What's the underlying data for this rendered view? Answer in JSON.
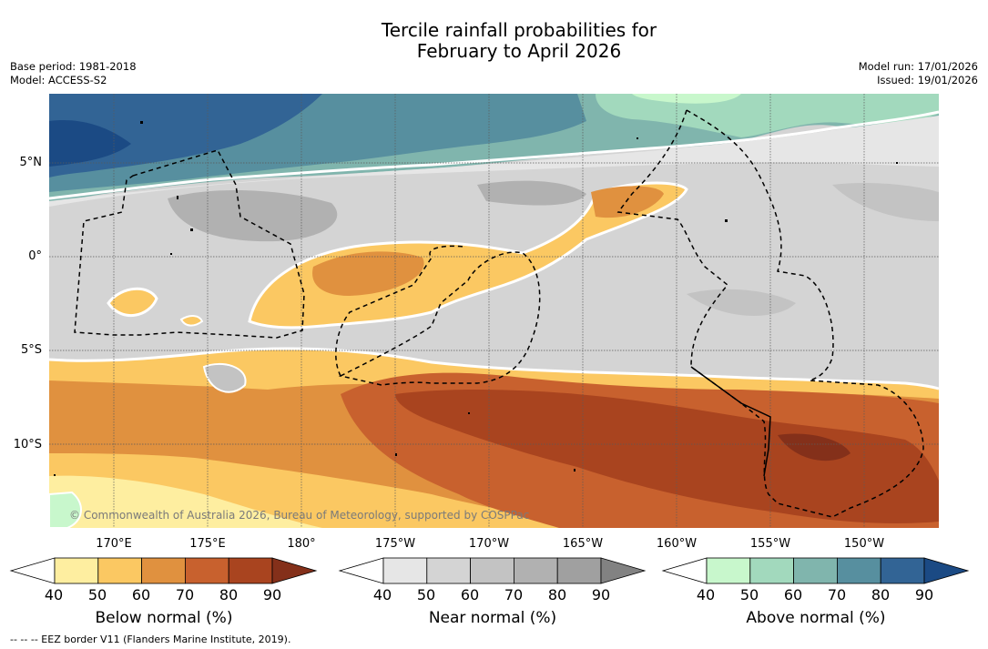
{
  "title": {
    "line1": "Tercile rainfall probabilities for",
    "line2": "February to April 2026"
  },
  "meta_left": {
    "base_period": "Base period: 1981-2018",
    "model": "Model: ACCESS-S2"
  },
  "meta_right": {
    "model_run": "Model run: 17/01/2026",
    "issued": "Issued: 19/01/2026"
  },
  "map": {
    "latitude_labels": [
      "5°N",
      "0°",
      "5°S",
      "10°S"
    ],
    "longitude_labels": [
      "170°E",
      "175°E",
      "180°",
      "175°W",
      "170°W",
      "165°W",
      "160°W",
      "155°W",
      "150°W"
    ],
    "copyright": "© Commonwealth of Australia 2026, Bureau of Meteorology, supported by COSPPac"
  },
  "colorbars": {
    "below": {
      "title": "Below normal (%)",
      "ticks": [
        "40",
        "50",
        "60",
        "70",
        "80",
        "90"
      ],
      "colors": [
        "#ffffff",
        "#feeea0",
        "#fbc862",
        "#e0913f",
        "#c8612e",
        "#a9441f",
        "#84301a"
      ]
    },
    "near": {
      "title": "Near normal (%)",
      "ticks": [
        "40",
        "50",
        "60",
        "70",
        "80",
        "90"
      ],
      "colors": [
        "#ffffff",
        "#e6e6e6",
        "#d4d4d4",
        "#c3c3c3",
        "#b1b1b1",
        "#a0a0a0",
        "#828282"
      ]
    },
    "above": {
      "title": "Above normal (%)",
      "ticks": [
        "40",
        "50",
        "60",
        "70",
        "80",
        "90"
      ],
      "colors": [
        "#ffffff",
        "#c8f7cc",
        "#a2d9bd",
        "#80b5ad",
        "#578f9f",
        "#326495",
        "#1b4a84"
      ]
    }
  },
  "footnote": "--  --  -- EEZ border V11 (Flanders Marine Institute, 2019)."
}
